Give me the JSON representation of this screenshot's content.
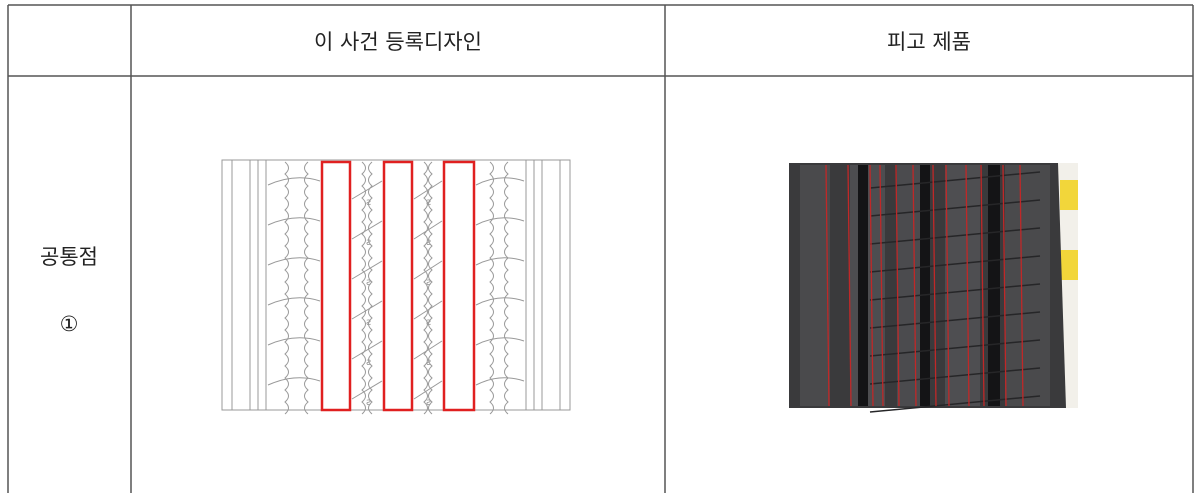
{
  "table": {
    "columns": [
      "이 사건 등록디자인",
      "피고 제품"
    ],
    "rows": [
      {
        "label": "공통점",
        "marker": "①"
      }
    ]
  }
}
